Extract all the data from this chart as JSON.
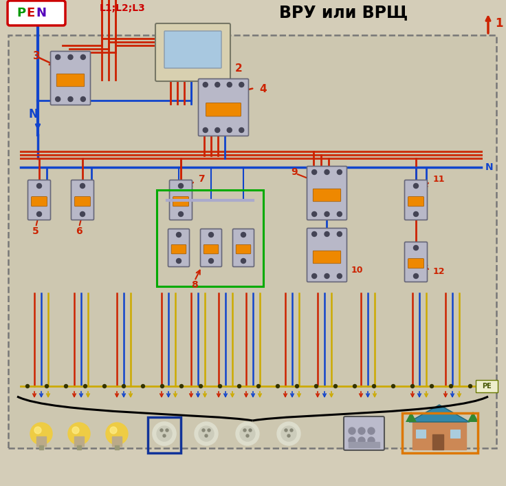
{
  "title": "ВРУ или ВРЩ",
  "pen_label": "PEN",
  "n_label": "N",
  "pe_label": "PE",
  "l_label": "L1;L2;L3",
  "bg_color": "#d4cdb8",
  "border_color": "#888888",
  "pen_box_color": "#cc0000",
  "red_color": "#cc2200",
  "blue_color": "#1144cc",
  "yellow_color": "#ccaa00",
  "wire_red": "#cc2200",
  "wire_blue": "#1144cc",
  "wire_yellow": "#ccaa00",
  "green_box_color": "#00aa00",
  "orange_box_color": "#dd7700",
  "dark_blue_box_color": "#113399",
  "cb_body": "#b8b8c8",
  "cb_edge": "#666677",
  "cb_orange": "#ee8800",
  "cb_dark": "#445566",
  "meter_body": "#d8d0b0",
  "meter_screen": "#a8c8e0",
  "fig_w": 7.36,
  "fig_h": 7.06,
  "dpi": 100
}
